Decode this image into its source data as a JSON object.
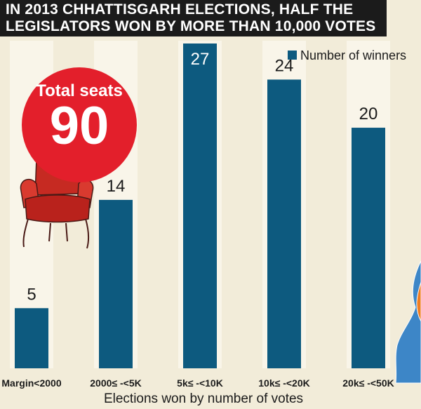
{
  "title_lines": [
    "IN 2013 CHHATTISGARH ELECTIONS, HALF THE",
    "LEGISLATORS WON BY MORE THAN 10,000 VOTES"
  ],
  "badge": {
    "label": "Total seats",
    "value": "90"
  },
  "colors": {
    "bar": "#0d5a7f",
    "badge": "#e31f2b",
    "background": "#f2ecd9",
    "column_band": "#f9f5e9",
    "map_blue": "#3d86c7",
    "map_orange": "#ef7d22"
  },
  "decorations": {
    "chair": "armchair-illustration",
    "map": "map-fragment"
  },
  "chart_data": {
    "type": "bar",
    "categories": [
      "Margin<2000",
      "2000≤ -<5K",
      "5k≤ -<10K",
      "10k≤ -<20K",
      "20k≤ -<50K"
    ],
    "series": [
      {
        "name": "Number of winners",
        "values": [
          5,
          14,
          27,
          24,
          20
        ]
      }
    ],
    "xlabel": "Elections won by number of votes",
    "ylabel": "",
    "ylim": [
      0,
      27
    ],
    "legend": "top-right",
    "grid": false
  }
}
